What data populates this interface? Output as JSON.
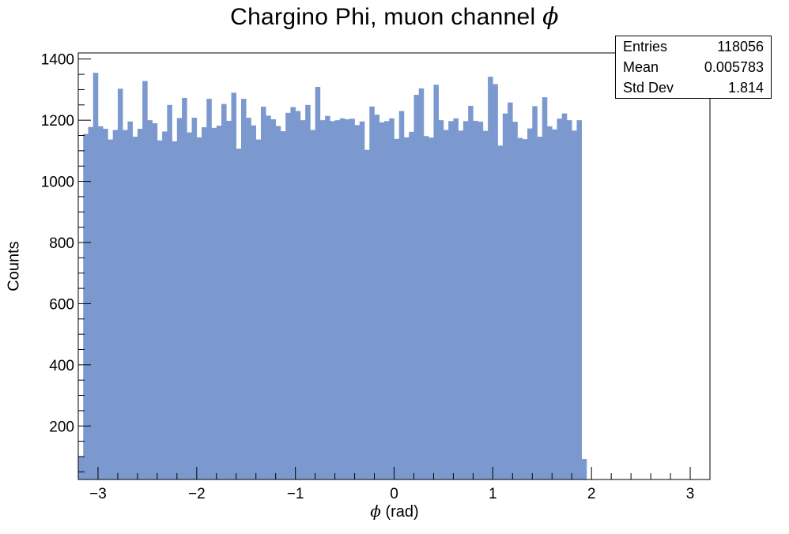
{
  "title_text": "Chargino Phi, muon channel ",
  "title_symbol": "ϕ",
  "xlabel_symbol": "ϕ",
  "xlabel_text": " (rad)",
  "ylabel": "Counts",
  "stats": {
    "entries_label": "Entries",
    "entries_value": "118056",
    "mean_label": "Mean",
    "mean_value": "0.005783",
    "stddev_label": "Std Dev",
    "stddev_value": "1.814"
  },
  "colors": {
    "fill": "#7b99cf",
    "axis": "#000000"
  },
  "chart_data": {
    "type": "bar",
    "title": "Chargino Phi, muon channel ϕ",
    "xlabel": "ϕ (rad)",
    "ylabel": "Counts",
    "xlim": [
      -3.2,
      3.2
    ],
    "ylim": [
      25,
      1420
    ],
    "xticks": [
      -3,
      -2,
      -1,
      0,
      1,
      2,
      3
    ],
    "xtick_labels": [
      "−3",
      "−2",
      "−1",
      "0",
      "1",
      "2",
      "3"
    ],
    "yticks": [
      200,
      400,
      600,
      800,
      1000,
      1200,
      1400
    ],
    "ytick_labels": [
      "200",
      "400",
      "600",
      "800",
      "1000",
      "1200",
      "1400"
    ],
    "bin_edges_start": -3.2,
    "bin_width": 0.05,
    "values": [
      100,
      1155,
      1178,
      1355,
      1180,
      1172,
      1137,
      1168,
      1303,
      1168,
      1196,
      1146,
      1172,
      1328,
      1200,
      1190,
      1134,
      1163,
      1250,
      1131,
      1207,
      1273,
      1160,
      1208,
      1144,
      1177,
      1270,
      1175,
      1182,
      1253,
      1198,
      1290,
      1107,
      1270,
      1208,
      1183,
      1137,
      1244,
      1215,
      1203,
      1181,
      1164,
      1224,
      1243,
      1230,
      1200,
      1250,
      1168,
      1309,
      1200,
      1214,
      1197,
      1200,
      1206,
      1203,
      1205,
      1184,
      1196,
      1103,
      1245,
      1218,
      1193,
      1197,
      1206,
      1139,
      1230,
      1144,
      1162,
      1283,
      1304,
      1148,
      1143,
      1316,
      1200,
      1168,
      1197,
      1206,
      1166,
      1197,
      1247,
      1198,
      1195,
      1165,
      1342,
      1318,
      1117,
      1222,
      1258,
      1195,
      1142,
      1138,
      1173,
      1246,
      1146,
      1275,
      1180,
      1170,
      1205,
      1222,
      1200,
      1166,
      1200,
      92
    ],
    "grid": false,
    "legend": "none"
  }
}
